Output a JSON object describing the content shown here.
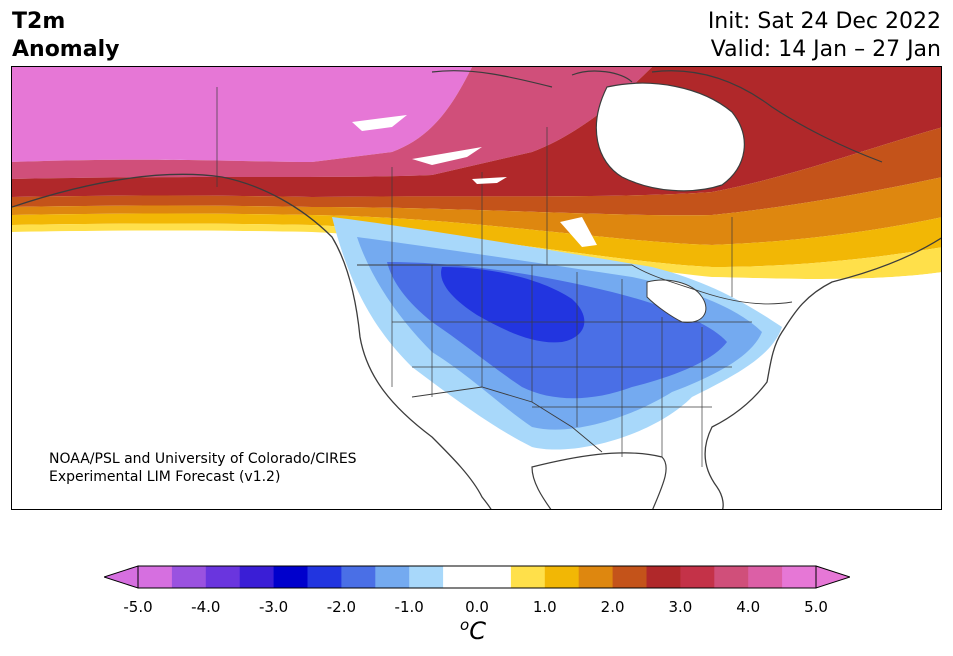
{
  "header": {
    "title_line1": "T2m",
    "title_line2": "Anomaly",
    "init": "Init: Sat 24 Dec 2022",
    "valid": "Valid: 14 Jan – 27 Jan"
  },
  "credit": {
    "line1": "NOAA/PSL and University of Colorado/CIRES",
    "line2": "Experimental LIM Forecast (v1.2)"
  },
  "colorbar": {
    "unit_sup": "o",
    "unit_main": "C",
    "ticks": [
      "-5.0",
      "-4.0",
      "-3.0",
      "-2.0",
      "-1.0",
      "0.0",
      "1.0",
      "2.0",
      "3.0",
      "4.0",
      "5.0"
    ],
    "colors": [
      "#d66fe0",
      "#9a52e0",
      "#6a35de",
      "#3a1ed6",
      "#0000cc",
      "#2235e0",
      "#4a6fe6",
      "#74aaf0",
      "#a8d8fa",
      "#ffffff",
      "#ffffff",
      "#ffe04a",
      "#f2b705",
      "#de870f",
      "#c4531a",
      "#b0282a",
      "#c43248",
      "#d04f7a",
      "#dc5fa6",
      "#e677d6"
    ],
    "under_color": "#d66fe0",
    "over_color": "#e677d6"
  },
  "map": {
    "land_color": "#ffffff",
    "border_color": "#3c3c3c"
  }
}
